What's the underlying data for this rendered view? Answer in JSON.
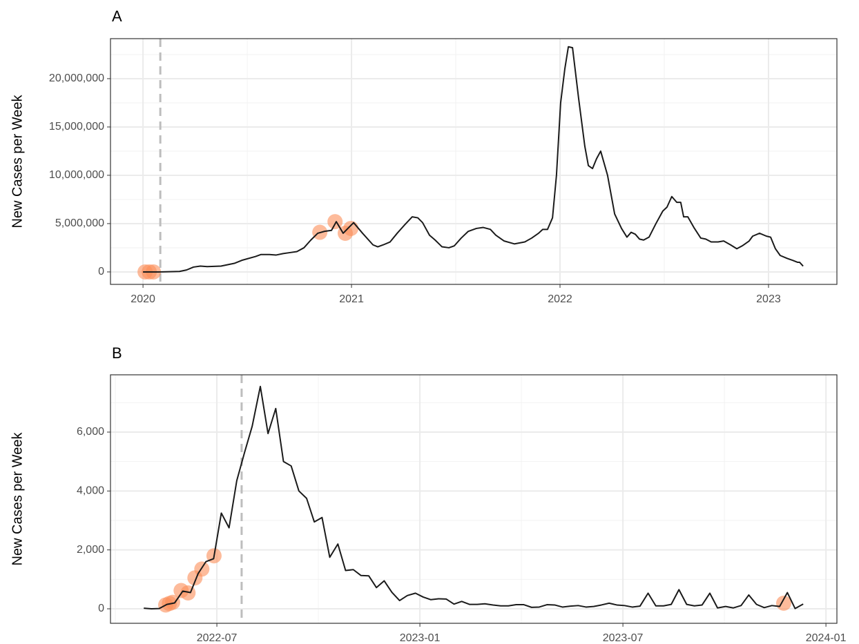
{
  "chart_data": [
    {
      "type": "line",
      "title": "A",
      "y_label": "New Cases per Week",
      "color": "#1a1a1a",
      "x": [
        2020.0,
        2020.076,
        2020.175,
        2020.209,
        2020.242,
        2020.275,
        2020.308,
        2020.374,
        2020.44,
        2020.474,
        2020.54,
        2020.566,
        2020.606,
        2020.639,
        2020.672,
        2020.705,
        2020.738,
        2020.772,
        2020.805,
        2020.838,
        2020.871,
        2020.904,
        2020.927,
        2020.96,
        2020.987,
        2021.01,
        2021.053,
        2021.103,
        2021.126,
        2021.152,
        2021.185,
        2021.219,
        2021.252,
        2021.291,
        2021.318,
        2021.341,
        2021.374,
        2021.401,
        2021.434,
        2021.467,
        2021.493,
        2021.526,
        2021.56,
        2021.599,
        2021.632,
        2021.666,
        2021.692,
        2021.732,
        2021.781,
        2021.831,
        2021.864,
        2021.897,
        2021.917,
        2021.94,
        2021.964,
        2021.983,
        2022.003,
        2022.023,
        2022.04,
        2022.06,
        2022.089,
        2022.119,
        2022.136,
        2022.156,
        2022.175,
        2022.195,
        2022.228,
        2022.262,
        2022.295,
        2022.321,
        2022.341,
        2022.361,
        2022.381,
        2022.401,
        2022.427,
        2022.46,
        2022.493,
        2022.513,
        2022.536,
        2022.56,
        2022.579,
        2022.593,
        2022.613,
        2022.642,
        2022.675,
        2022.699,
        2022.725,
        2022.758,
        2022.785,
        2022.818,
        2022.848,
        2022.874,
        2022.907,
        2022.924,
        2022.957,
        2022.99,
        2023.01,
        2023.033,
        2023.056,
        2023.089,
        2023.116,
        2023.139,
        2023.149,
        2023.166
      ],
      "values": [
        0,
        0,
        50000,
        200000,
        500000,
        600000,
        550000,
        600000,
        900000,
        1200000,
        1600000,
        1800000,
        1800000,
        1750000,
        1900000,
        2000000,
        2100000,
        2500000,
        3300000,
        4000000,
        4200000,
        4300000,
        5200000,
        4000000,
        4600000,
        5100000,
        4000000,
        2800000,
        2600000,
        2800000,
        3100000,
        4000000,
        4800000,
        5700000,
        5600000,
        5100000,
        3800000,
        3300000,
        2600000,
        2500000,
        2700000,
        3500000,
        4200000,
        4500000,
        4600000,
        4400000,
        3800000,
        3200000,
        2900000,
        3100000,
        3500000,
        4000000,
        4400000,
        4400000,
        5600000,
        10000000,
        17500000,
        21000000,
        23300000,
        23200000,
        18000000,
        13000000,
        11000000,
        10700000,
        11700000,
        12500000,
        10000000,
        6000000,
        4500000,
        3600000,
        4100000,
        3900000,
        3400000,
        3300000,
        3600000,
        5000000,
        6300000,
        6700000,
        7800000,
        7200000,
        7200000,
        5700000,
        5700000,
        4600000,
        3500000,
        3400000,
        3100000,
        3100000,
        3200000,
        2800000,
        2400000,
        2700000,
        3200000,
        3700000,
        4000000,
        3700000,
        3600000,
        2400000,
        1700000,
        1400000,
        1200000,
        1000000,
        1000000,
        600000
      ],
      "highlights": {
        "color": "#fc8d59",
        "x": [
          2020.01,
          2020.03,
          2020.05,
          2020.848,
          2020.921,
          2020.97,
          2020.997
        ],
        "values": [
          0,
          0,
          0,
          4100000,
          5200000,
          4000000,
          4500000
        ]
      },
      "vline": 2020.083,
      "xlim": [
        2019.844,
        2023.328
      ],
      "xticks": [
        2020,
        2021,
        2022,
        2023
      ],
      "ylim": [
        -1290000,
        24140000
      ],
      "yticks": [
        0,
        {
          "value": 5000000,
          "label": "5,000,000"
        },
        {
          "value": 10000000,
          "label": "10,000,000"
        },
        {
          "value": 15000000,
          "label": "15,000,000"
        },
        {
          "value": 20000000,
          "label": "20,000,000"
        }
      ],
      "grid": true
    },
    {
      "type": "line",
      "title": "B",
      "y_label": "New Cases per Week",
      "color": "#1a1a1a",
      "x": [
        2022.32,
        2022.339,
        2022.358,
        2022.377,
        2022.396,
        2022.416,
        2022.435,
        2022.454,
        2022.473,
        2022.492,
        2022.511,
        2022.53,
        2022.549,
        2022.568,
        2022.587,
        2022.607,
        2022.626,
        2022.645,
        2022.664,
        2022.683,
        2022.702,
        2022.721,
        2022.74,
        2022.759,
        2022.778,
        2022.798,
        2022.817,
        2022.836,
        2022.855,
        2022.874,
        2022.893,
        2022.912,
        2022.931,
        2022.95,
        2022.969,
        2022.989,
        2023.008,
        2023.027,
        2023.046,
        2023.065,
        2023.084,
        2023.103,
        2023.122,
        2023.141,
        2023.16,
        2023.18,
        2023.199,
        2023.218,
        2023.237,
        2023.256,
        2023.275,
        2023.294,
        2023.313,
        2023.332,
        2023.351,
        2023.371,
        2023.39,
        2023.409,
        2023.428,
        2023.447,
        2023.466,
        2023.485,
        2023.504,
        2023.523,
        2023.542,
        2023.562,
        2023.581,
        2023.6,
        2023.619,
        2023.638,
        2023.657,
        2023.676,
        2023.695,
        2023.714,
        2023.733,
        2023.753,
        2023.772,
        2023.791,
        2023.81,
        2023.829,
        2023.848,
        2023.867,
        2023.886,
        2023.905,
        2023.924,
        2023.944
      ],
      "values": [
        20,
        0,
        10,
        150,
        200,
        600,
        550,
        1200,
        1600,
        1700,
        3250,
        2750,
        4350,
        5300,
        6200,
        7550,
        5950,
        6800,
        5000,
        4850,
        4000,
        3750,
        2950,
        3100,
        1750,
        2200,
        1300,
        1330,
        1130,
        1120,
        720,
        950,
        560,
        280,
        450,
        530,
        400,
        310,
        340,
        330,
        160,
        250,
        150,
        150,
        170,
        130,
        100,
        100,
        140,
        140,
        50,
        60,
        140,
        130,
        60,
        90,
        110,
        60,
        80,
        130,
        190,
        130,
        110,
        60,
        90,
        530,
        100,
        100,
        150,
        650,
        150,
        100,
        130,
        530,
        30,
        80,
        30,
        110,
        470,
        150,
        40,
        110,
        80,
        550,
        10,
        160
      ],
      "highlights": {
        "color": "#fc8d59",
        "x": [
          2022.374,
          2022.383,
          2022.391,
          2022.412,
          2022.429,
          2022.446,
          2022.463,
          2022.493,
          2023.896
        ],
        "values": [
          130,
          180,
          220,
          620,
          540,
          1050,
          1350,
          1800,
          190
        ]
      },
      "vline": 2022.561,
      "xlim": [
        2022.238,
        2024.027
      ],
      "xticks": [
        {
          "value": 2022.5,
          "label": "2022-07"
        },
        {
          "value": 2023,
          "label": "2023-01"
        },
        {
          "value": 2023.5,
          "label": "2023-07"
        },
        {
          "value": 2024,
          "label": "2024-01"
        }
      ],
      "ylim": [
        -492,
        7945
      ],
      "yticks": [
        0,
        {
          "value": 2000,
          "label": "2,000"
        },
        {
          "value": 4000,
          "label": "4,000"
        },
        {
          "value": 6000,
          "label": "6,000"
        }
      ],
      "grid": true
    }
  ]
}
